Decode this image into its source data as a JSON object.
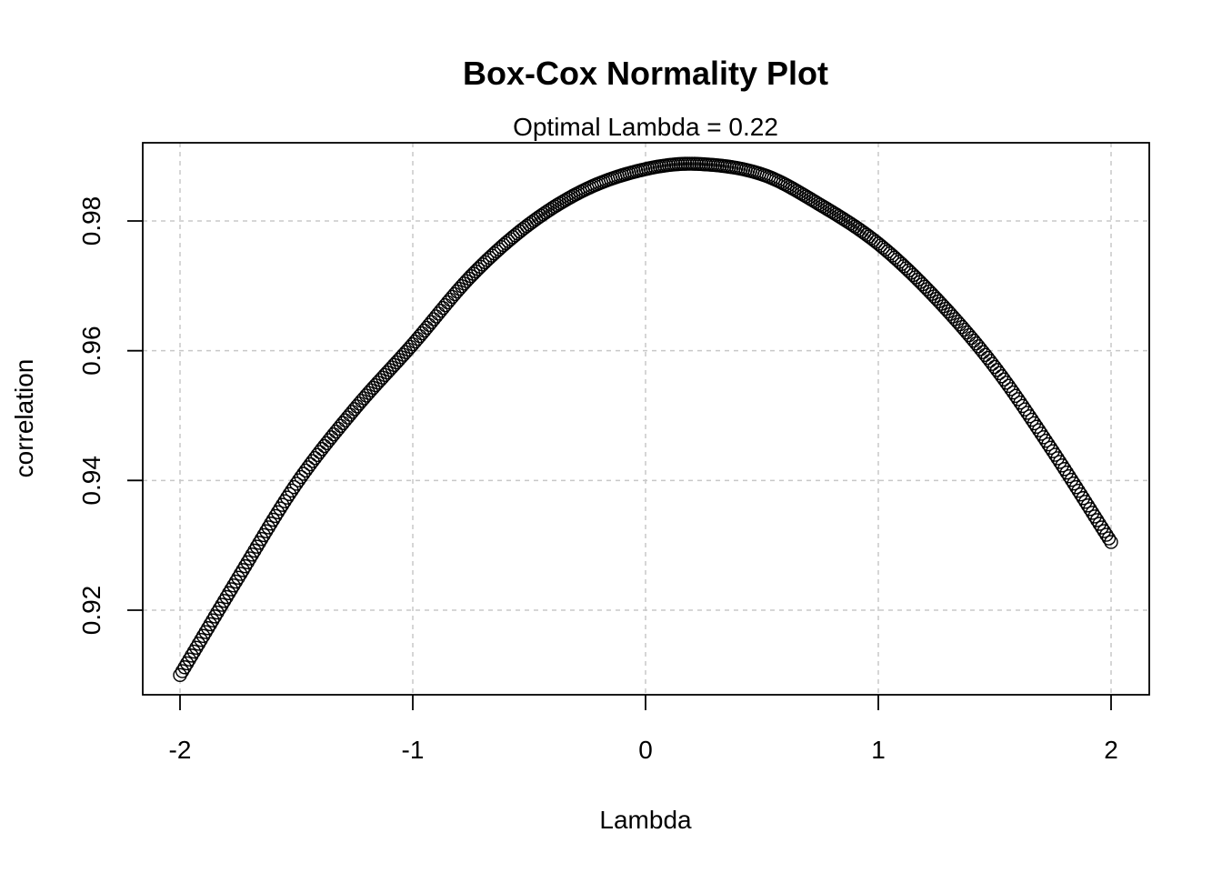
{
  "chart_data": {
    "type": "scatter",
    "title": "Box-Cox Normality Plot",
    "subtitle": "Optimal Lambda = 0.22",
    "xlabel": "Lambda",
    "ylabel": "correlation",
    "xlim": [
      -2,
      2
    ],
    "ylim": [
      0.909,
      0.9915
    ],
    "x_ticks": [
      -2,
      -1,
      0,
      1,
      2
    ],
    "x_tick_labels": [
      "-2",
      "-1",
      "0",
      "1",
      "2"
    ],
    "y_ticks": [
      0.92,
      0.94,
      0.96,
      0.98
    ],
    "y_tick_labels": [
      "0.92",
      "0.94",
      "0.96",
      "0.98"
    ],
    "grid": true,
    "marker": "open-circle",
    "optimal_lambda": 0.22,
    "curve_description_points": {
      "x": [
        -2.0,
        -1.75,
        -1.5,
        -1.25,
        -1.0,
        -0.75,
        -0.5,
        -0.25,
        0.0,
        0.22,
        0.5,
        0.75,
        1.0,
        1.25,
        1.5,
        1.75,
        2.0
      ],
      "y": [
        0.91,
        0.925,
        0.9395,
        0.951,
        0.961,
        0.9715,
        0.9795,
        0.985,
        0.988,
        0.9888,
        0.9872,
        0.9825,
        0.9765,
        0.968,
        0.9575,
        0.9445,
        0.9305
      ]
    },
    "n_points": 401
  }
}
